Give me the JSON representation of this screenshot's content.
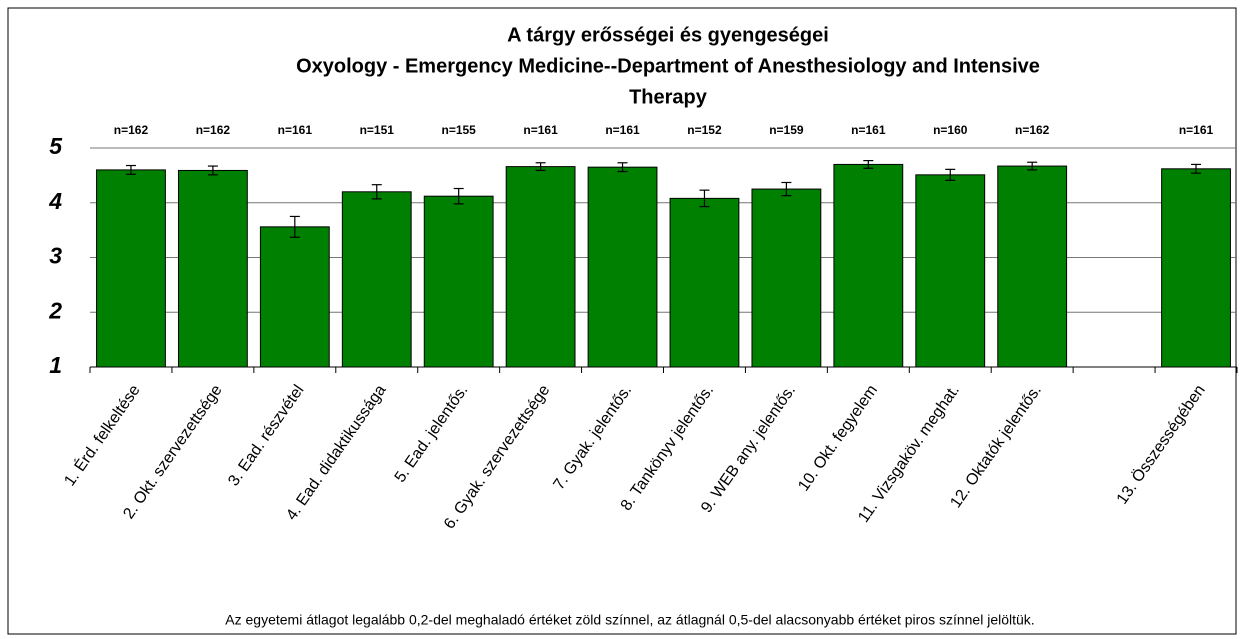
{
  "chart_data": {
    "type": "bar",
    "title": "A tárgy erősségei és gyengeségei",
    "subtitle": [
      "Oxyology - Emergency Medicine--Department of Anesthesiology and Intensive",
      "Therapy"
    ],
    "categories": [
      "1. Érd. felkeltése",
      "2. Okt. szervezettsége",
      "3. Ead. részvétel",
      "4. Ead. didaktikussága",
      "5. Ead. jelentős.",
      "6. Gyak. szervezettsége",
      "7. Gyak. jelentős.",
      "8. Tankönyv jelentős.",
      "9. WEB any. jelentős.",
      "10. Okt. fegyelem",
      "11. Vizsgaköv. meghat.",
      "12. Oktatók jelentős.",
      null,
      "13. Összességében"
    ],
    "values": [
      4.6,
      4.59,
      3.56,
      4.2,
      4.12,
      4.66,
      4.65,
      4.08,
      4.25,
      4.7,
      4.51,
      4.67,
      null,
      4.62
    ],
    "errors": [
      0.08,
      0.08,
      0.19,
      0.13,
      0.14,
      0.07,
      0.08,
      0.15,
      0.12,
      0.07,
      0.1,
      0.07,
      null,
      0.08
    ],
    "n_labels": [
      "n=162",
      "n=162",
      "n=161",
      "n=151",
      "n=155",
      "n=161",
      "n=161",
      "n=152",
      "n=159",
      "n=161",
      "n=160",
      "n=162",
      null,
      "n=161"
    ],
    "color": "#008000",
    "ylim": [
      1,
      5
    ],
    "yticks": [
      1,
      2,
      3,
      4,
      5
    ],
    "grid": true,
    "footnote": "Az egyetemi átlagot legalább 0,2-del meghaladó értéket zöld színnel, az átlagnál 0,5-del alacsonyabb értéket piros színnel jelöltük."
  }
}
